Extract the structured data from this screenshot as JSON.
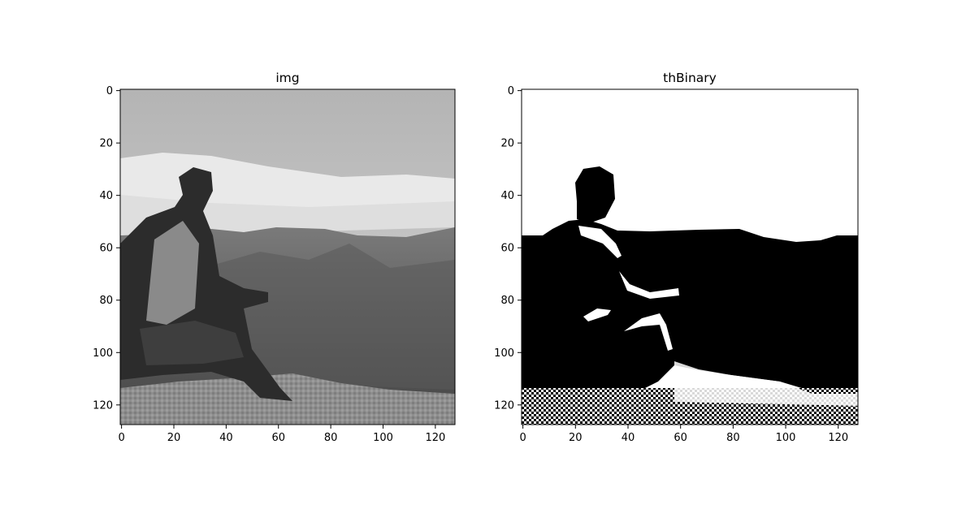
{
  "chart_data": [
    {
      "type": "image",
      "title": "img",
      "image_size": [
        128,
        128
      ],
      "colormap": "gray",
      "xlim": [
        0,
        127
      ],
      "ylim": [
        127,
        0
      ],
      "x_ticks": [
        0,
        20,
        40,
        60,
        80,
        100,
        120
      ],
      "y_ticks": [
        0,
        20,
        40,
        60,
        80,
        100,
        120
      ],
      "x_tick_labels": [
        "0",
        "20",
        "40",
        "60",
        "80",
        "100",
        "120"
      ],
      "y_tick_labels": [
        "0",
        "20",
        "40",
        "60",
        "80",
        "100",
        "120"
      ],
      "content": "grayscale photo of a person sitting on a rock overlooking mountains"
    },
    {
      "type": "image",
      "title": "thBinary",
      "image_size": [
        128,
        128
      ],
      "colormap": "binary threshold",
      "xlim": [
        0,
        127
      ],
      "ylim": [
        127,
        0
      ],
      "x_ticks": [
        0,
        20,
        40,
        60,
        80,
        100,
        120
      ],
      "y_ticks": [
        0,
        20,
        40,
        60,
        80,
        100,
        120
      ],
      "x_tick_labels": [
        "0",
        "20",
        "40",
        "60",
        "80",
        "100",
        "120"
      ],
      "y_tick_labels": [
        "0",
        "20",
        "40",
        "60",
        "80",
        "100",
        "120"
      ],
      "content": "binary thresholded version of the photo"
    }
  ]
}
